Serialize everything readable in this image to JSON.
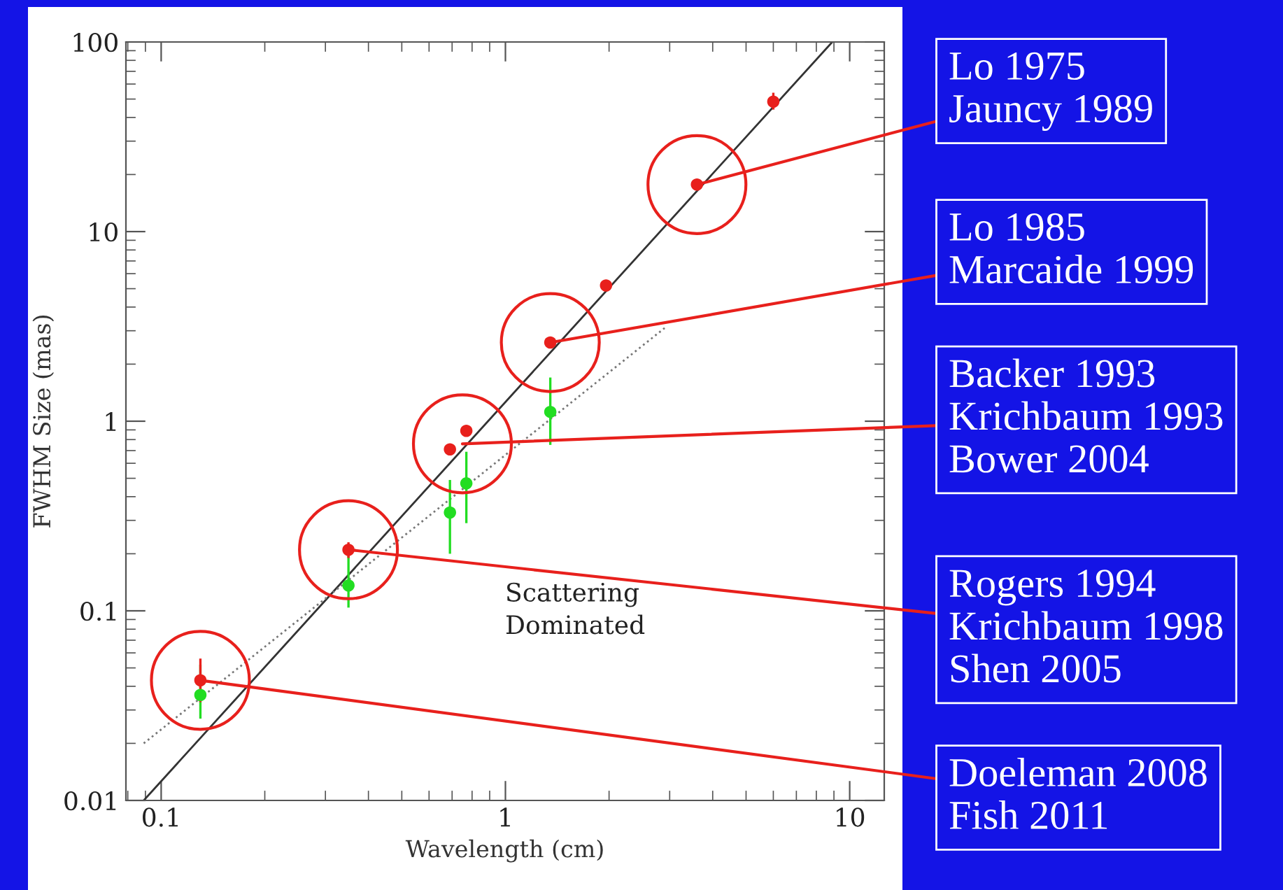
{
  "chart_data": {
    "type": "scatter",
    "xlabel": "Wavelength (cm)",
    "ylabel": "FWHM Size (mas)",
    "log": "xy",
    "xlim": [
      0.079,
      12.6
    ],
    "ylim": [
      0.01,
      100
    ],
    "xticks": [
      {
        "value": 0.1,
        "label": "0.1"
      },
      1,
      10
    ],
    "yticks": [
      {
        "value": 0.01,
        "label": "0.01"
      },
      {
        "value": 0.1,
        "label": "0.1"
      },
      1,
      10,
      100
    ],
    "grid": false,
    "legend": false,
    "series": [
      {
        "type": "line",
        "color": "#333333",
        "line_style": "solid",
        "marker": "none",
        "x": [
          0.089,
          8.9
        ],
        "values": [
          0.01,
          100
        ]
      },
      {
        "type": "line",
        "color": "#777777",
        "line_style": "dotted",
        "marker": "none",
        "x": [
          0.089,
          2.9
        ],
        "values": [
          0.02,
          3.1
        ]
      },
      {
        "color": "#22dd22",
        "marker": "circle",
        "x": [
          0.13,
          0.35,
          0.69,
          0.77,
          1.35
        ],
        "values": [
          0.036,
          0.136,
          0.33,
          0.47,
          1.12
        ],
        "errors": [
          [
            0.027,
            0.052
          ],
          [
            0.104,
            0.195
          ],
          [
            0.2,
            0.49
          ],
          [
            0.29,
            0.69
          ],
          [
            0.75,
            1.7
          ]
        ]
      },
      {
        "color": "#e8201c",
        "marker": "circle",
        "x": [
          0.13,
          0.35,
          0.69,
          0.77,
          1.35,
          1.96,
          3.6,
          6.0
        ],
        "values": [
          0.043,
          0.21,
          0.71,
          0.89,
          2.6,
          5.2,
          17.7,
          48.5
        ],
        "errors": [
          [
            0.033,
            0.056
          ],
          [
            0.19,
            0.23
          ],
          null,
          null,
          null,
          null,
          null,
          [
            44,
            54
          ]
        ]
      }
    ],
    "annotations": [
      {
        "text": "Lo 1975\nJauncy 1989",
        "x": 3.6,
        "y": 17.7
      },
      {
        "text": "Lo 1985\nMarcaide 1999",
        "x": 1.35,
        "y": 2.6
      },
      {
        "text": "Backer 1993\nKrichbaum 1993\nBower 2004",
        "x": 0.75,
        "y": 0.76
      },
      {
        "text": "Rogers 1994\nKrichbaum 1998\nShen 2005",
        "x": 0.35,
        "y": 0.21
      },
      {
        "text": "Doeleman 2008\nFish 2011",
        "x": 0.13,
        "y": 0.043
      },
      "Scattering\nDominated"
    ]
  }
}
